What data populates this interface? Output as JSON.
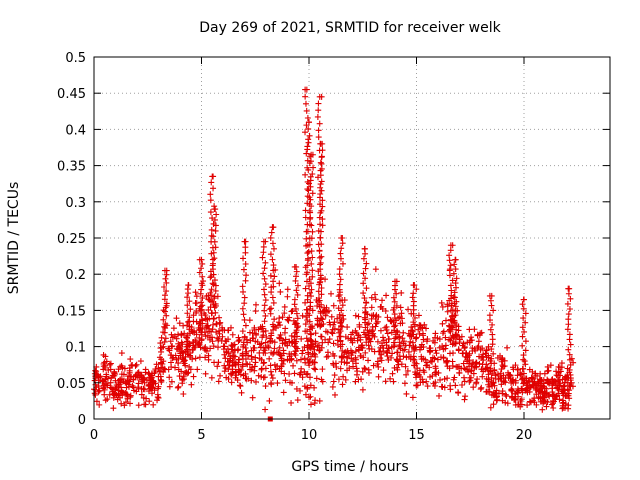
{
  "chart_data": {
    "type": "scatter",
    "title": "Day 269 of 2021, SRMTID for receiver welk",
    "xlabel": "GPS time / hours",
    "ylabel": "SRMTID / TECUs",
    "xlim": [
      0,
      24
    ],
    "ylim": [
      0,
      0.5
    ],
    "x_ticks": [
      0,
      5,
      10,
      15,
      20
    ],
    "x_tick_labels": [
      "0",
      "5",
      "10",
      "15",
      "20"
    ],
    "y_ticks": [
      0,
      0.05,
      0.1,
      0.15,
      0.2,
      0.25,
      0.3,
      0.35,
      0.4,
      0.45,
      0.5
    ],
    "y_tick_labels": [
      "0",
      "0.05",
      "0.1",
      "0.15",
      "0.2",
      "0.25",
      "0.3",
      "0.35",
      "0.4",
      "0.45",
      "0.5"
    ],
    "grid": true,
    "marker": "+",
    "color": "#e00000",
    "series": [
      {
        "name": "SRMTID",
        "envelope": {
          "x": [
            0,
            0.5,
            1,
            1.5,
            2,
            2.5,
            3,
            3.3,
            3.6,
            4,
            4.5,
            5,
            5.5,
            6,
            6.5,
            7,
            7.5,
            8,
            8.5,
            9,
            9.5,
            10,
            10.5,
            11,
            11.5,
            12,
            12.5,
            13,
            13.5,
            14,
            14.5,
            15,
            15.5,
            16,
            16.5,
            17,
            17.5,
            18,
            18.5,
            19,
            19.5,
            20,
            20.5,
            21,
            21.5,
            22,
            22.3
          ],
          "center": [
            0.05,
            0.055,
            0.045,
            0.05,
            0.055,
            0.045,
            0.05,
            0.12,
            0.09,
            0.08,
            0.1,
            0.12,
            0.13,
            0.1,
            0.08,
            0.075,
            0.095,
            0.09,
            0.12,
            0.11,
            0.09,
            0.08,
            0.13,
            0.12,
            0.1,
            0.1,
            0.1,
            0.13,
            0.12,
            0.1,
            0.11,
            0.09,
            0.08,
            0.08,
            0.11,
            0.1,
            0.08,
            0.09,
            0.05,
            0.06,
            0.05,
            0.05,
            0.045,
            0.04,
            0.045,
            0.04,
            0.06
          ],
          "spread": [
            0.025,
            0.03,
            0.03,
            0.03,
            0.03,
            0.025,
            0.03,
            0.05,
            0.04,
            0.04,
            0.05,
            0.06,
            0.06,
            0.05,
            0.04,
            0.04,
            0.05,
            0.06,
            0.07,
            0.06,
            0.05,
            0.06,
            0.08,
            0.07,
            0.06,
            0.05,
            0.05,
            0.06,
            0.06,
            0.05,
            0.06,
            0.05,
            0.04,
            0.05,
            0.07,
            0.06,
            0.04,
            0.05,
            0.03,
            0.035,
            0.03,
            0.03,
            0.025,
            0.025,
            0.025,
            0.03,
            0.04
          ]
        },
        "peaks": [
          {
            "x": 3.3,
            "y": 0.205
          },
          {
            "x": 4.4,
            "y": 0.185
          },
          {
            "x": 5.0,
            "y": 0.22
          },
          {
            "x": 5.5,
            "y": 0.335
          },
          {
            "x": 5.6,
            "y": 0.29
          },
          {
            "x": 7.0,
            "y": 0.245
          },
          {
            "x": 7.9,
            "y": 0.245
          },
          {
            "x": 8.3,
            "y": 0.265
          },
          {
            "x": 9.4,
            "y": 0.21
          },
          {
            "x": 9.9,
            "y": 0.455
          },
          {
            "x": 10.0,
            "y": 0.41
          },
          {
            "x": 10.1,
            "y": 0.365
          },
          {
            "x": 10.5,
            "y": 0.445
          },
          {
            "x": 10.55,
            "y": 0.38
          },
          {
            "x": 11.5,
            "y": 0.25
          },
          {
            "x": 12.6,
            "y": 0.235
          },
          {
            "x": 14.0,
            "y": 0.19
          },
          {
            "x": 14.9,
            "y": 0.185
          },
          {
            "x": 16.6,
            "y": 0.24
          },
          {
            "x": 16.8,
            "y": 0.22
          },
          {
            "x": 18.5,
            "y": 0.17
          },
          {
            "x": 20.0,
            "y": 0.165
          },
          {
            "x": 22.1,
            "y": 0.18
          }
        ],
        "lows": [
          {
            "x": 0.9,
            "y": 0.015
          },
          {
            "x": 2.4,
            "y": 0.02
          },
          {
            "x": 8.2,
            "y": 0.0
          },
          {
            "x": 10.5,
            "y": 0.025
          },
          {
            "x": 10.0,
            "y": 0.03
          },
          {
            "x": 19.9,
            "y": 0.02
          },
          {
            "x": 21.3,
            "y": 0.02
          }
        ]
      }
    ]
  }
}
